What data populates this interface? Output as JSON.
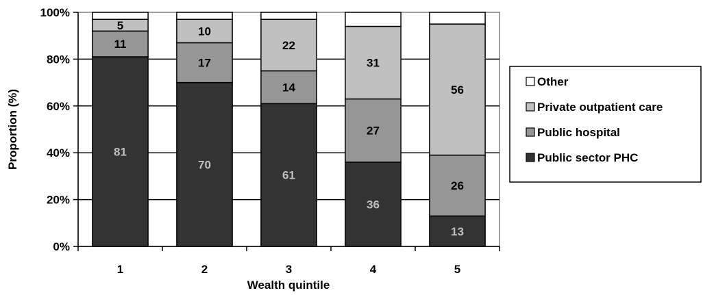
{
  "chart_data": {
    "type": "bar",
    "stacked": true,
    "percent_axis": true,
    "categories": [
      "1",
      "2",
      "3",
      "4",
      "5"
    ],
    "series": [
      {
        "name": "Public sector PHC",
        "values": [
          81,
          70,
          61,
          36,
          13
        ],
        "color": "#333333",
        "label_color": "#c0c0c0"
      },
      {
        "name": "Public hospital",
        "values": [
          11,
          17,
          14,
          27,
          26
        ],
        "color": "#969696",
        "label_color": "#000000"
      },
      {
        "name": "Private outpatient care",
        "values": [
          5,
          10,
          22,
          31,
          56
        ],
        "color": "#c0c0c0",
        "label_color": "#000000"
      },
      {
        "name": "Other",
        "values": [
          3,
          3,
          3,
          6,
          5
        ],
        "color": "#ffffff",
        "label_color": "#000000",
        "show_labels": false
      }
    ],
    "xlabel": "Wealth quintile",
    "ylabel": "Proportion (%)",
    "ylim": [
      0,
      100
    ],
    "yticks": [
      "0%",
      "20%",
      "40%",
      "60%",
      "80%",
      "100%"
    ],
    "grid": true,
    "legend_position": "right",
    "legend_order": [
      "Other",
      "Private outpatient care",
      "Public hospital",
      "Public sector PHC"
    ]
  }
}
